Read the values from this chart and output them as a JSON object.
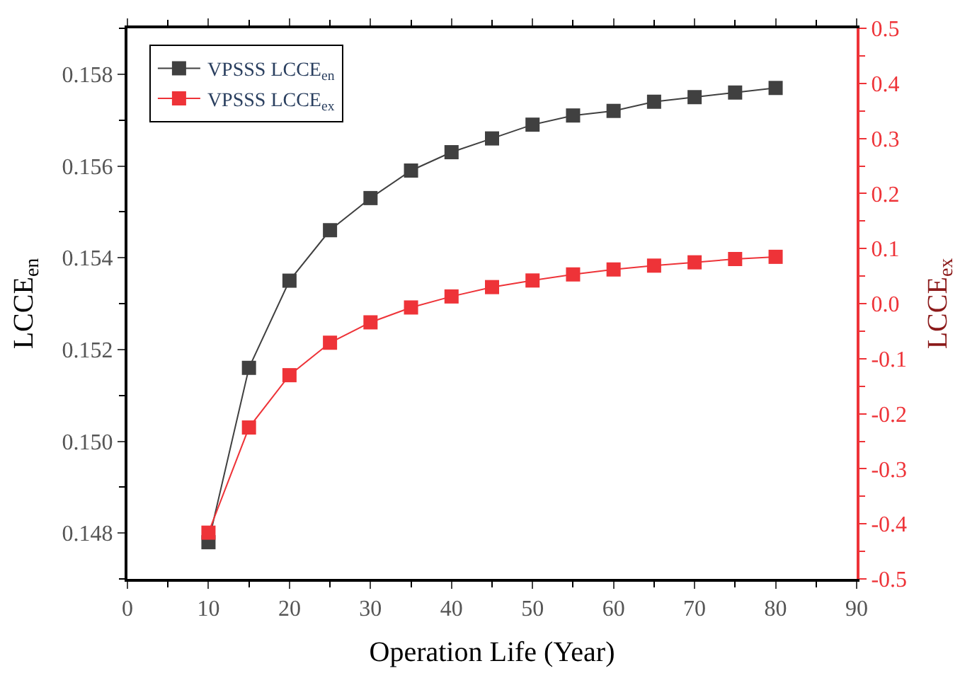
{
  "chart_data": {
    "type": "line",
    "xlabel": "Operation Life (Year)",
    "ylabel": "LCCE$_{en}$",
    "y2label": "LCCE$_{ex}$",
    "x": [
      10,
      15,
      20,
      25,
      30,
      35,
      40,
      45,
      50,
      55,
      60,
      65,
      70,
      75,
      80
    ],
    "series": [
      {
        "name": "VPSSS LCCE$_{en}$",
        "color": "#404040",
        "values": [
          0.1478,
          0.1516,
          0.1535,
          0.1546,
          0.1553,
          0.1559,
          0.1563,
          0.1566,
          0.1569,
          0.1571,
          0.1572,
          0.1574,
          0.1575,
          0.1576,
          0.1577
        ]
      },
      {
        "name": "VPSSS LCCE$_{ex}$",
        "color": "#ee3338",
        "axis": "y2",
        "values": [
          -0.416,
          -0.225,
          -0.13,
          -0.071,
          -0.034,
          -0.007,
          0.013,
          0.03,
          0.042,
          0.053,
          0.062,
          0.069,
          0.075,
          0.081,
          0.085
        ]
      }
    ],
    "xlim": [
      0,
      90
    ],
    "xticks": [
      0,
      10,
      20,
      30,
      40,
      50,
      60,
      70,
      80,
      90
    ],
    "ylim": [
      0.147,
      0.159
    ],
    "yticks": [
      {
        "value": 0.148,
        "label": "0.148"
      },
      {
        "value": 0.15,
        "label": "0.150"
      },
      {
        "value": 0.152,
        "label": "0.152"
      },
      {
        "value": 0.154,
        "label": "0.154"
      },
      {
        "value": 0.156,
        "label": "0.156"
      },
      {
        "value": 0.158,
        "label": "0.158"
      }
    ],
    "y2lim": [
      -0.5,
      0.5
    ],
    "y2ticks": [
      {
        "value": -0.5,
        "label": "-0.5"
      },
      {
        "value": -0.4,
        "label": "-0.4"
      },
      {
        "value": -0.3,
        "label": "-0.3"
      },
      {
        "value": -0.2,
        "label": "-0.2"
      },
      {
        "value": -0.1,
        "label": "-0.1"
      },
      {
        "value": 0,
        "label": "0.0"
      },
      {
        "value": 0.1,
        "label": "0.1"
      },
      {
        "value": 0.2,
        "label": "0.2"
      },
      {
        "value": 0.3,
        "label": "0.3"
      },
      {
        "value": 0.4,
        "label": "0.4"
      },
      {
        "value": 0.5,
        "label": "0.5"
      }
    ],
    "legend": "top left",
    "marker": "square",
    "line_style": "solid"
  }
}
